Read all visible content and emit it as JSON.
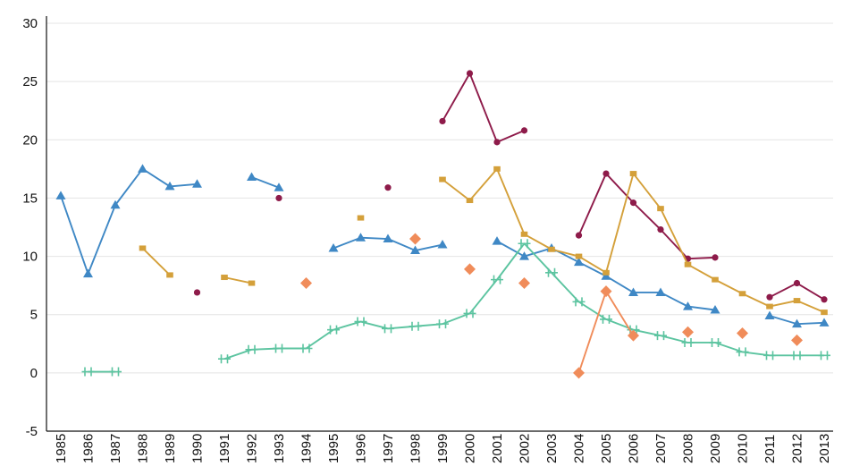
{
  "chart_data": {
    "type": "line",
    "title": "",
    "xlabel": "",
    "ylabel": "",
    "ylim": [
      -5,
      30
    ],
    "yticks": [
      -5,
      0,
      5,
      10,
      15,
      20,
      25,
      30
    ],
    "grid": true,
    "legend": "none",
    "x": [
      "1985",
      "1986",
      "1987",
      "1988",
      "1989",
      "1990",
      "1991",
      "1992",
      "1993",
      "1994",
      "1995",
      "1996",
      "1997",
      "1998",
      "1999",
      "2000",
      "2001",
      "2002",
      "2003",
      "2004",
      "2005",
      "2006",
      "2007",
      "2008",
      "2009",
      "2010",
      "2011",
      "2012",
      "2013"
    ],
    "series": [
      {
        "color": "#8e1b4a",
        "marker": "circle",
        "values": [
          null,
          null,
          null,
          null,
          null,
          6.9,
          null,
          null,
          15.0,
          null,
          null,
          null,
          15.9,
          null,
          21.6,
          25.7,
          19.8,
          20.8,
          null,
          11.8,
          17.1,
          14.6,
          12.3,
          9.8,
          9.9,
          null,
          6.5,
          7.7,
          6.3
        ]
      },
      {
        "color": "#3f88c5",
        "marker": "triangle",
        "values": [
          15.2,
          8.5,
          14.4,
          17.5,
          16.0,
          16.2,
          null,
          16.8,
          15.9,
          null,
          10.7,
          11.6,
          11.5,
          10.5,
          11.0,
          null,
          11.3,
          10.0,
          10.7,
          9.5,
          8.3,
          6.9,
          6.9,
          5.7,
          5.4,
          null,
          4.9,
          4.2,
          4.3
        ]
      },
      {
        "color": "#d4a03a",
        "marker": "square",
        "values": [
          null,
          null,
          null,
          10.7,
          8.4,
          null,
          8.2,
          7.7,
          null,
          null,
          null,
          13.3,
          null,
          null,
          16.6,
          14.8,
          17.5,
          11.9,
          10.6,
          10.0,
          8.6,
          17.1,
          14.1,
          9.3,
          8.0,
          6.8,
          5.7,
          6.2,
          5.2
        ]
      },
      {
        "color": "#5cc4a0",
        "marker": "bar",
        "values": [
          null,
          0.1,
          0.1,
          null,
          null,
          null,
          1.2,
          2.0,
          2.1,
          2.1,
          3.7,
          4.4,
          3.8,
          4.0,
          4.2,
          5.1,
          8.0,
          11.1,
          8.6,
          6.1,
          4.6,
          3.7,
          3.2,
          2.6,
          2.6,
          1.8,
          1.5,
          1.5,
          1.5
        ]
      },
      {
        "color": "#f08c5a",
        "marker": "diamond",
        "values": [
          null,
          null,
          null,
          null,
          null,
          null,
          null,
          null,
          null,
          7.7,
          null,
          null,
          null,
          11.5,
          null,
          8.9,
          null,
          7.7,
          null,
          0.0,
          7.0,
          3.2,
          null,
          3.5,
          null,
          3.4,
          null,
          2.8,
          null
        ]
      }
    ]
  }
}
